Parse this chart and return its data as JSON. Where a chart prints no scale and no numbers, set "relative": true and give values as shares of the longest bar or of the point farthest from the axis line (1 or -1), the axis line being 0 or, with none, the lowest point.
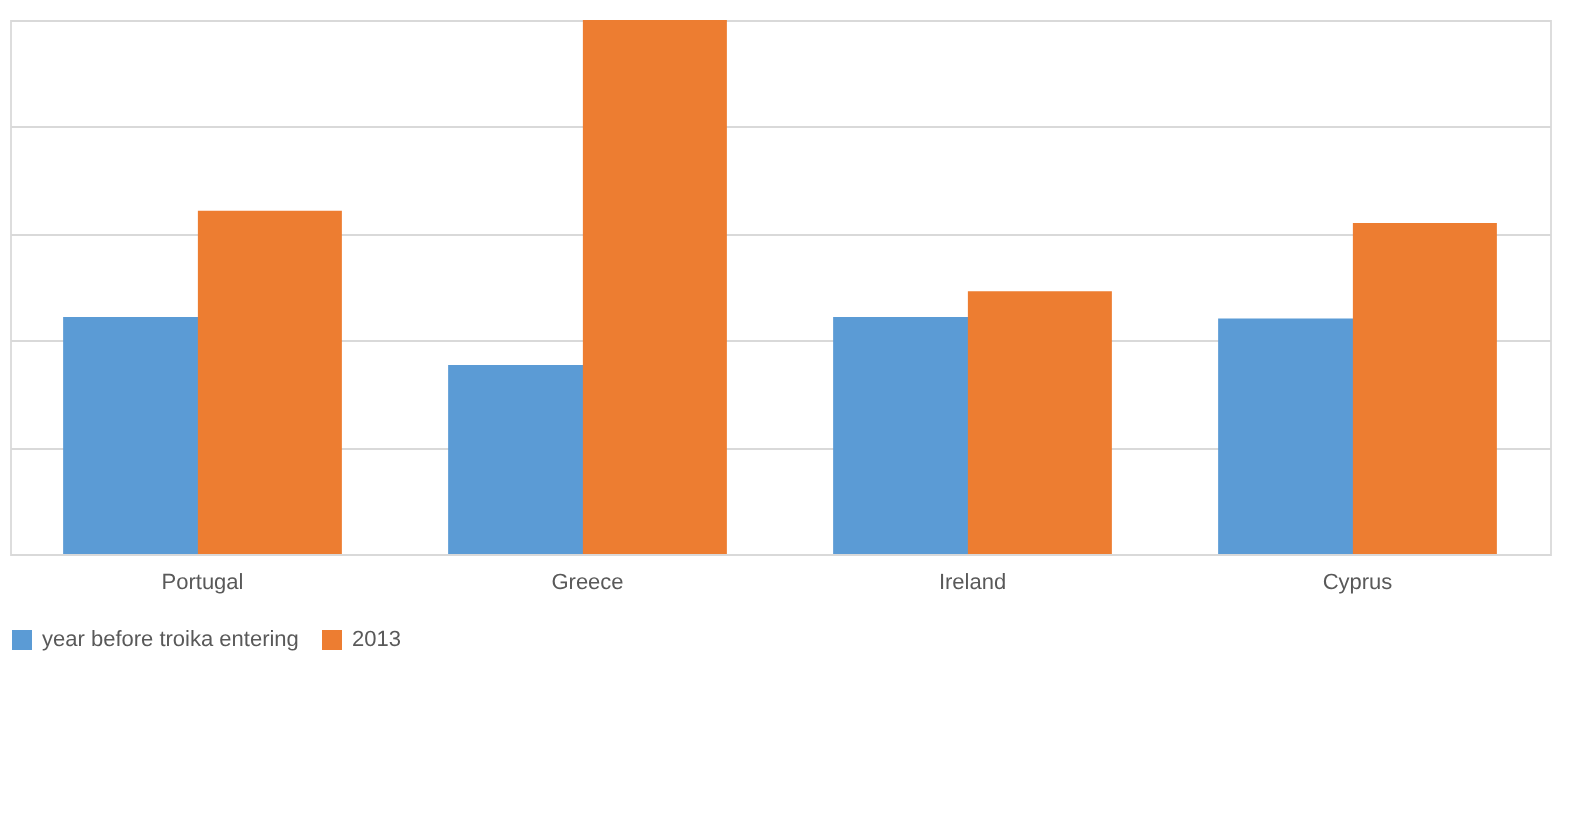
{
  "chart_data": {
    "type": "bar",
    "relative": true,
    "categories": [
      "Portugal",
      "Greece",
      "Ireland",
      "Cyprus"
    ],
    "series": [
      {
        "name": "year before troika entering",
        "color": "#5b9bd5",
        "values": [
          0.444,
          0.354,
          0.444,
          0.441
        ]
      },
      {
        "name": "2013",
        "color": "#ed7d31",
        "values": [
          0.643,
          1,
          0.492,
          0.62
        ]
      }
    ],
    "grid": "y",
    "legend": "bottom"
  }
}
